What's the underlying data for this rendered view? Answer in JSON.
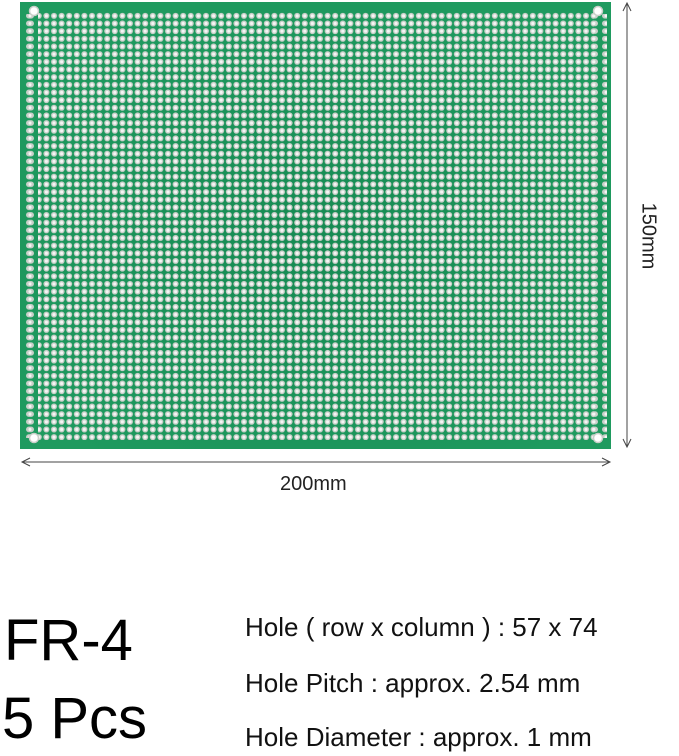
{
  "board": {
    "width_label": "200mm",
    "height_label": "150mm",
    "hole_rows": 57,
    "hole_columns": 74,
    "colors": {
      "substrate": "#1f9a5f",
      "substrate_dark": "#168a52",
      "pad": "#c9cfc9",
      "hole": "#f4f6f4",
      "mounting_hole": "#ffffff",
      "dimension_line": "#444444"
    }
  },
  "labels": {
    "material": "FR-4",
    "quantity": "5 Pcs"
  },
  "specs": {
    "rows_columns": "Hole ( row  x column ) : 57 x 74",
    "pitch": "Hole Pitch : approx. 2.54 mm",
    "diameter": "Hole Diameter : approx. 1 mm"
  }
}
